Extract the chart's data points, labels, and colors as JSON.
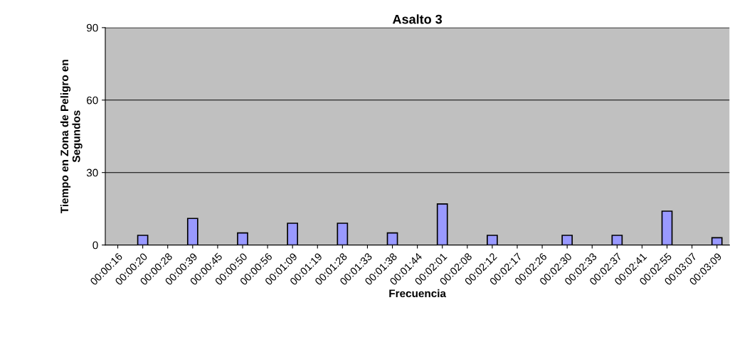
{
  "chart_data": {
    "type": "bar",
    "title": "Asalto 3",
    "xlabel": "Frecuencia",
    "ylabel": "Tiempo en Zona de Peligro en\nSegundos",
    "categories": [
      "00:00:16",
      "00:00:20",
      "00:00:28",
      "00:00:39",
      "00:00:45",
      "00:00:50",
      "00:00:56",
      "00:01:09",
      "00:01:19",
      "00:01:28",
      "00:01:33",
      "00:01:38",
      "00:01:44",
      "00:02:01",
      "00:02:08",
      "00:02:12",
      "00:02:17",
      "00:02:26",
      "00:02:30",
      "00:02:33",
      "00:02:37",
      "00:02:41",
      "00:02:55",
      "00:03:07",
      "00:03:09"
    ],
    "values": [
      null,
      4,
      null,
      11,
      null,
      5,
      null,
      9,
      null,
      9,
      null,
      5,
      null,
      17,
      null,
      4,
      null,
      null,
      4,
      null,
      4,
      null,
      14,
      null,
      3
    ],
    "color": "#9999ff",
    "ylim": [
      0,
      90
    ],
    "yticks": [
      0,
      30,
      60,
      90
    ],
    "grid": "y",
    "legend": false
  }
}
